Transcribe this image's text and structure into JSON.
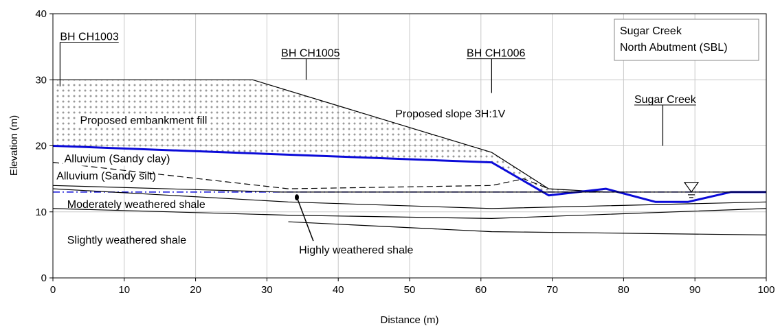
{
  "chart_data": {
    "type": "line",
    "title": "",
    "xlabel": "Distance (m)",
    "ylabel": "Elevation (m)",
    "xlim": [
      0,
      100
    ],
    "ylim": [
      0,
      40
    ],
    "xticks": [
      0,
      10,
      20,
      30,
      40,
      50,
      60,
      70,
      80,
      90,
      100
    ],
    "yticks": [
      0,
      10,
      20,
      30,
      40
    ],
    "grid": true,
    "colors": {
      "existing_ground": "#0b0bd8",
      "water_level": "#0b0bd8",
      "layers": "#000000",
      "fill_dots": "#9a9a9a"
    },
    "legend": {
      "lines": [
        "Sugar Creek",
        "North Abutment (SBL)"
      ],
      "position": "top-right"
    },
    "series": [
      {
        "key": "embankment",
        "style": "black-solid",
        "x": [
          0,
          28,
          61.5,
          69.5,
          77.5
        ],
        "y": [
          30,
          30,
          19,
          13.5,
          13
        ]
      },
      {
        "key": "existing_ground",
        "style": "blue-thick",
        "x": [
          0,
          61.5,
          69.5,
          77.5,
          84.5,
          89,
          95,
          100
        ],
        "y": [
          20,
          17.5,
          12.5,
          13.5,
          11.5,
          11.5,
          13,
          13
        ]
      },
      {
        "key": "water_level",
        "style": "blue-dashdot",
        "x": [
          0,
          100
        ],
        "y": [
          13,
          13
        ]
      },
      {
        "key": "alluvium_boundary",
        "style": "black-dashed",
        "x": [
          0,
          33,
          61.5,
          66,
          69.5
        ],
        "y": [
          17.5,
          13.5,
          14,
          15,
          13.5
        ]
      },
      {
        "key": "highly_weathered_top",
        "style": "black-solid",
        "x": [
          0,
          32,
          100
        ],
        "y": [
          14,
          13,
          13
        ]
      },
      {
        "key": "moderately_weathered_top",
        "style": "black-solid",
        "x": [
          0,
          33,
          61.5,
          100
        ],
        "y": [
          13.5,
          11.5,
          10.5,
          11.5
        ]
      },
      {
        "key": "slightly_weathered_top",
        "style": "black-solid",
        "x": [
          0,
          33,
          61.5,
          100
        ],
        "y": [
          10.5,
          9.5,
          9,
          10.5
        ]
      },
      {
        "key": "lower_boundary",
        "style": "black-solid",
        "x": [
          33,
          61.5,
          100
        ],
        "y": [
          8.5,
          7,
          6.5
        ]
      }
    ],
    "boreholes": [
      {
        "label": "BH CH1003",
        "x": 1,
        "y_top": 36,
        "y_bottom": 29,
        "label_x": 1,
        "label_y": 36
      },
      {
        "label": "BH CH1005",
        "x": 35.5,
        "y_top": 33.5,
        "y_bottom": 30,
        "label_x": 32,
        "label_y": 33.5
      },
      {
        "label": "BH CH1006",
        "x": 61.5,
        "y_top": 33.5,
        "y_bottom": 28,
        "label_x": 58,
        "label_y": 33.5
      }
    ],
    "creek_label": {
      "label": "Sugar Creek",
      "x": 85.5,
      "y_top": 26.5,
      "y_bottom": 20,
      "label_x": 81.5,
      "label_y": 26.5
    },
    "water_symbol": {
      "x": 89.5,
      "y": 13
    },
    "annotations": [
      {
        "text": "Proposed embankment fill",
        "x": 3.8,
        "y": 23.3
      },
      {
        "text": "Proposed slope 3H:1V",
        "x": 48,
        "y": 24.3
      },
      {
        "text": "Alluvium (Sandy clay)",
        "x": 1.6,
        "y": 17.5
      },
      {
        "text": "Alluvium (Sandy silt)",
        "x": 0.5,
        "y": 14.9
      },
      {
        "text": "Moderately weathered shale",
        "x": 2,
        "y": 10.6
      },
      {
        "text": "Slightly weathered shale",
        "x": 2,
        "y": 5.2
      },
      {
        "text": "Highly weathered shale",
        "x": 34.5,
        "y": 3.7
      }
    ],
    "pointer": {
      "from_x": 36.5,
      "from_y": 5.6,
      "to_x": 34.2,
      "to_y": 12.2
    }
  }
}
